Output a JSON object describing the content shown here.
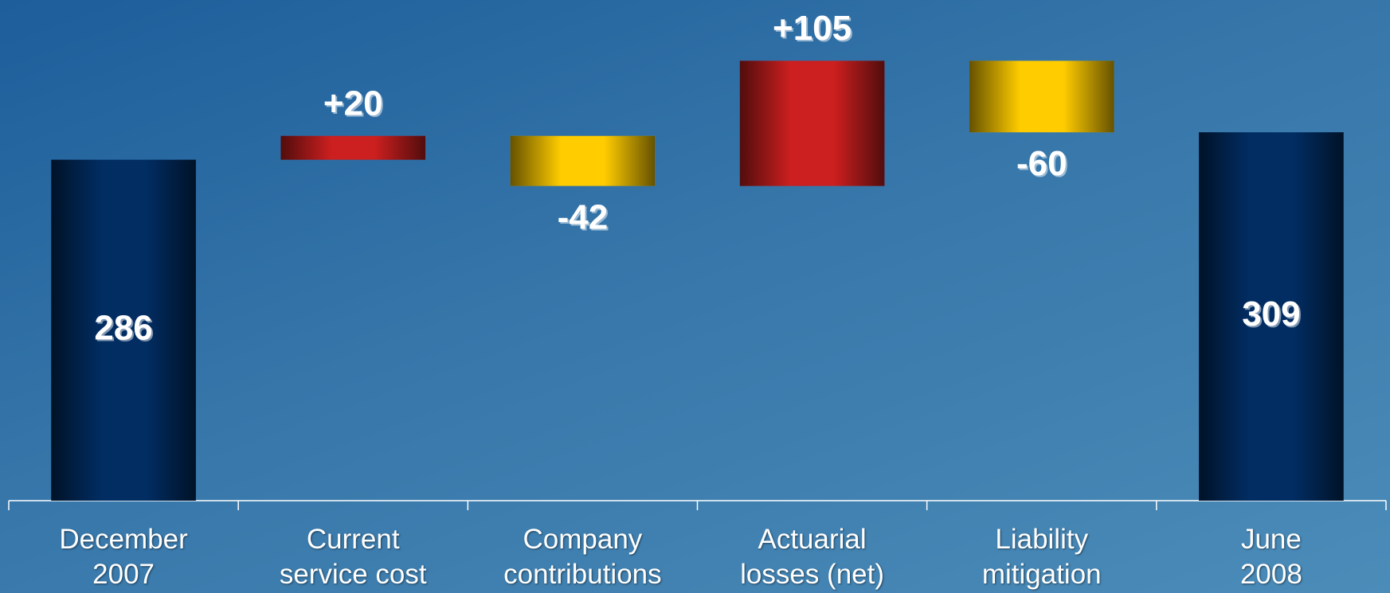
{
  "chart_data": {
    "type": "waterfall",
    "categories": [
      "December\n2007",
      "Current\nservice cost",
      "Company\ncontributions",
      "Actuarial\nlosses (net)",
      "Liability\nmitigation",
      "June\n2008"
    ],
    "values": [
      286,
      20,
      -42,
      105,
      -60,
      309
    ],
    "value_labels": [
      "286",
      "+20",
      "-42",
      "+105",
      "-60",
      "309"
    ],
    "total_color": "#012d63",
    "increase_color": "#cc1f1f",
    "decrease_color": "#ffcc00",
    "ylim": [
      0,
      420
    ]
  }
}
